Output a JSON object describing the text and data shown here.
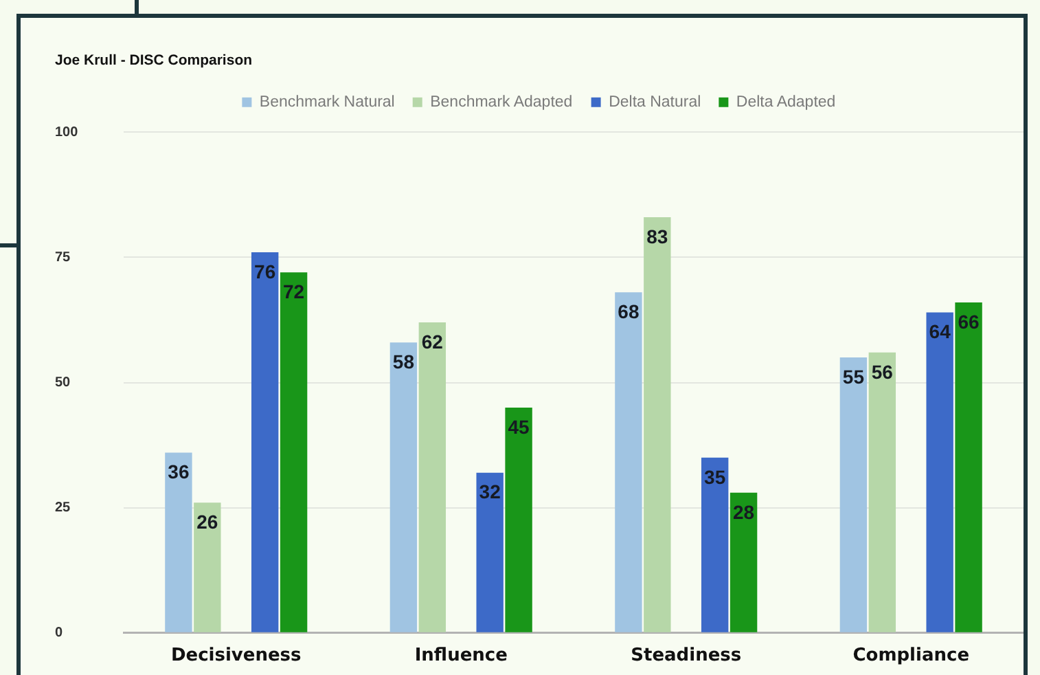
{
  "chart_data": {
    "type": "bar",
    "title": "Joe Krull - DISC Comparison",
    "categories": [
      "Decisiveness",
      "Influence",
      "Steadiness",
      "Compliance"
    ],
    "series": [
      {
        "name": "Benchmark Natural",
        "color": "#a0c4e2",
        "values": [
          36,
          58,
          68,
          55
        ]
      },
      {
        "name": "Benchmark Adapted",
        "color": "#b6d7a8",
        "values": [
          26,
          62,
          83,
          56
        ]
      },
      {
        "name": "Delta Natural",
        "color": "#3d6ac8",
        "values": [
          76,
          32,
          35,
          64
        ]
      },
      {
        "name": "Delta Adapted",
        "color": "#199619",
        "values": [
          72,
          45,
          28,
          66
        ]
      }
    ],
    "ylim": [
      0,
      100
    ],
    "yticks": [
      0,
      25,
      50,
      75,
      100
    ],
    "grid": "y",
    "legend": "top",
    "data_labels": true
  }
}
